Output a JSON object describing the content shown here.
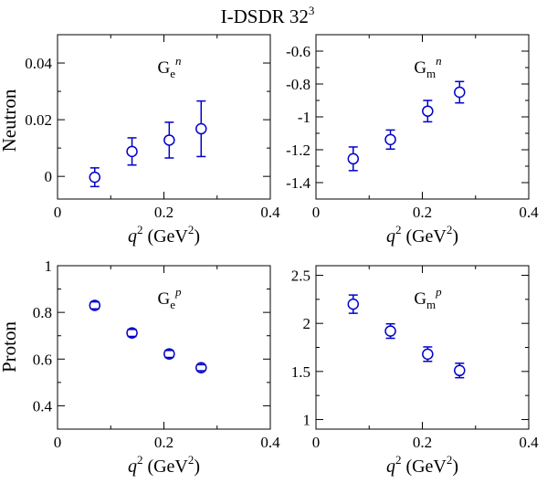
{
  "figure": {
    "title_main": "I-DSDR 32",
    "title_sup": "3"
  },
  "row_labels": [
    "Neutron",
    "Proton"
  ],
  "xlabel": {
    "q": "q",
    "sup": "2",
    "unit_open": " (GeV",
    "unit_sup": "2",
    "unit_close": ")"
  },
  "chart_data": [
    {
      "type": "scatter",
      "panel_label": {
        "main": "G",
        "sub": "e",
        "sup": "n"
      },
      "x": [
        0.07,
        0.14,
        0.21,
        0.27
      ],
      "y": [
        -0.0003,
        0.0088,
        0.0128,
        0.0168
      ],
      "yerr": [
        0.0033,
        0.0048,
        0.0063,
        0.0098
      ],
      "xlim": [
        0,
        0.4
      ],
      "ylim": [
        -0.008,
        0.05
      ],
      "xticks": [
        0,
        0.2,
        0.4
      ],
      "xticklabels": [
        "0",
        "0.2",
        "0.4"
      ],
      "yticks": [
        0,
        0.02,
        0.04
      ],
      "yticklabels": [
        "0",
        "0.02",
        "0.04"
      ],
      "color": "#0000cc"
    },
    {
      "type": "scatter",
      "panel_label": {
        "main": "G",
        "sub": "m",
        "sup": "n"
      },
      "x": [
        0.07,
        0.14,
        0.21,
        0.27
      ],
      "y": [
        -1.255,
        -1.138,
        -0.965,
        -0.85
      ],
      "yerr": [
        0.072,
        0.058,
        0.065,
        0.065
      ],
      "xlim": [
        0,
        0.4
      ],
      "ylim": [
        -1.5,
        -0.5
      ],
      "xticks": [
        0,
        0.2,
        0.4
      ],
      "xticklabels": [
        "0",
        "0.2",
        "0.4"
      ],
      "yticks": [
        -1.4,
        -1.2,
        -1.0,
        -0.8,
        -0.6
      ],
      "yticklabels": [
        "-1.4",
        "-1.2",
        "-1",
        "-0.8",
        "-0.6"
      ],
      "color": "#0000cc"
    },
    {
      "type": "scatter",
      "panel_label": {
        "main": "G",
        "sub": "e",
        "sup": "p"
      },
      "x": [
        0.07,
        0.14,
        0.21,
        0.27
      ],
      "y": [
        0.83,
        0.712,
        0.622,
        0.563
      ],
      "yerr": [
        0.015,
        0.015,
        0.015,
        0.013
      ],
      "xlim": [
        0,
        0.4
      ],
      "ylim": [
        0.3,
        1.0
      ],
      "xticks": [
        0,
        0.2,
        0.4
      ],
      "xticklabels": [
        "0",
        "0.2",
        "0.4"
      ],
      "yticks": [
        0.4,
        0.6,
        0.8,
        1.0
      ],
      "yticklabels": [
        "0.4",
        "0.6",
        "0.8",
        "1"
      ],
      "color": "#0000cc"
    },
    {
      "type": "scatter",
      "panel_label": {
        "main": "G",
        "sub": "m",
        "sup": "p"
      },
      "x": [
        0.07,
        0.14,
        0.21,
        0.27
      ],
      "y": [
        2.2,
        1.92,
        1.68,
        1.51
      ],
      "yerr": [
        0.095,
        0.075,
        0.075,
        0.075
      ],
      "xlim": [
        0,
        0.4
      ],
      "ylim": [
        0.9,
        2.6
      ],
      "xticks": [
        0,
        0.2,
        0.4
      ],
      "xticklabels": [
        "0",
        "0.2",
        "0.4"
      ],
      "yticks": [
        1.0,
        1.5,
        2.0,
        2.5
      ],
      "yticklabels": [
        "1",
        "1.5",
        "2",
        "2.5"
      ],
      "color": "#0000cc"
    }
  ]
}
